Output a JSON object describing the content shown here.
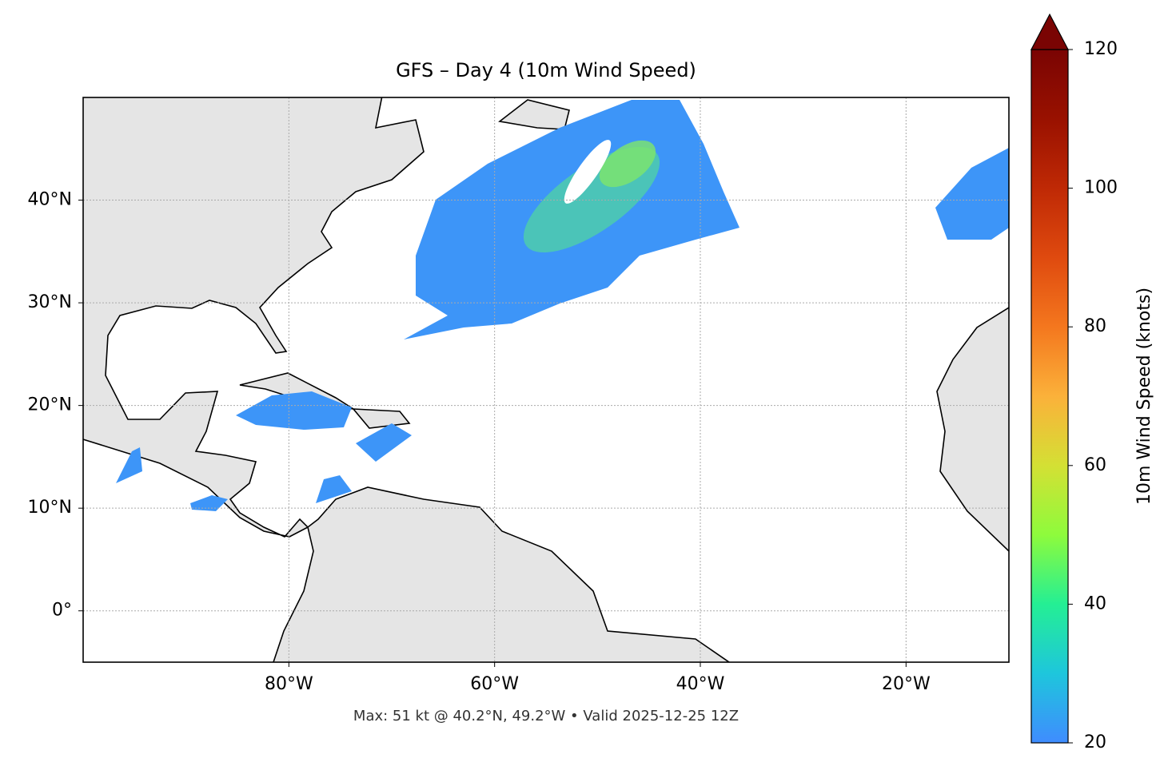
{
  "chart_data": {
    "type": "map",
    "title": "GFS – Day 4 (10m Wind Speed)",
    "footnote": "Max: 51 kt @ 40.2°N, 49.2°W • Valid 2025-12-25 12Z",
    "xlim": [
      -100,
      -10
    ],
    "ylim": [
      -5,
      50
    ],
    "xticks": [
      {
        "value": -80,
        "label": "80°W"
      },
      {
        "value": -60,
        "label": "60°W"
      },
      {
        "value": -40,
        "label": "40°W"
      },
      {
        "value": -20,
        "label": "20°W"
      }
    ],
    "yticks": [
      {
        "value": 0,
        "label": "0°"
      },
      {
        "value": 10,
        "label": "10°N"
      },
      {
        "value": 20,
        "label": "20°N"
      },
      {
        "value": 30,
        "label": "30°N"
      },
      {
        "value": 40,
        "label": "40°N"
      }
    ],
    "grid": true,
    "colorbar": {
      "label": "10m Wind Speed (knots)",
      "lim": [
        20,
        120
      ],
      "ticks": [
        20,
        40,
        60,
        80,
        100,
        120
      ],
      "colors": [
        "#3f8cff",
        "#1ec6dc",
        "#24ef94",
        "#8efb3c",
        "#d4e034",
        "#fbb13a",
        "#f4771e",
        "#df4a0f",
        "#bf2905",
        "#991100",
        "#7a0403"
      ],
      "extend": "max"
    }
  }
}
